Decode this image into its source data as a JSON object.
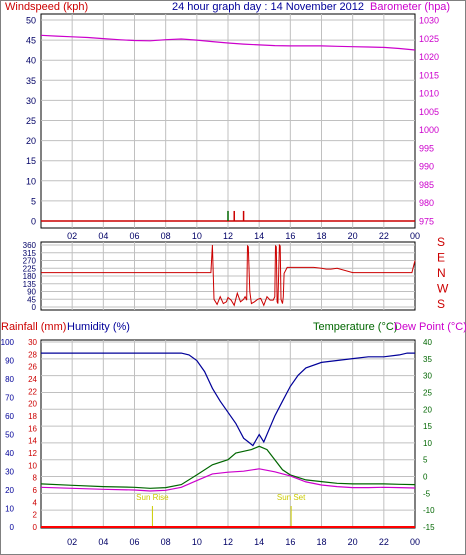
{
  "title": "24 hour graph day : 14 November 2012",
  "x_ticks": [
    "02",
    "04",
    "06",
    "08",
    "10",
    "12",
    "14",
    "16",
    "18",
    "20",
    "22",
    "00"
  ],
  "colors": {
    "wind_axis": "#cc0000",
    "baro": "#cc00cc",
    "humidity": "#000099",
    "temperature": "#006600",
    "dewpoint": "#cc00cc",
    "rainfall": "#ff0000",
    "sun": "#cccc00",
    "grid": "#c0c0c0",
    "tick_labels": "#000066"
  },
  "chart_data": [
    {
      "type": "line",
      "ylabel": "Windspeed (kph)",
      "y2label": "Barometer (hpa)",
      "ylim": [
        0,
        50
      ],
      "y2lim": [
        975,
        1030
      ],
      "yticks": [
        0,
        5,
        10,
        15,
        20,
        25,
        30,
        35,
        40,
        45,
        50
      ],
      "y2ticks": [
        975,
        980,
        985,
        990,
        995,
        1000,
        1005,
        1010,
        1015,
        1020,
        1025,
        1030
      ],
      "xlim": [
        0,
        24
      ],
      "series": [
        {
          "role": "barometer",
          "axis": "right",
          "x": [
            0,
            1,
            2,
            3,
            4,
            5,
            6,
            7,
            8,
            9,
            10,
            11,
            12,
            13,
            14,
            15,
            16,
            17,
            18,
            19,
            20,
            21,
            22,
            23,
            24
          ],
          "values": [
            1025.8,
            1025.6,
            1025.4,
            1025.2,
            1024.9,
            1024.6,
            1024.4,
            1024.3,
            1024.6,
            1024.8,
            1024.5,
            1024.1,
            1023.7,
            1023.4,
            1023.2,
            1023.0,
            1022.9,
            1022.9,
            1022.9,
            1022.8,
            1022.7,
            1022.6,
            1022.5,
            1022.2,
            1021.8
          ]
        },
        {
          "role": "windspeed",
          "axis": "left",
          "x": [
            11.9,
            12.0,
            12.1,
            12.3,
            12.4,
            12.9,
            13.0,
            13.1
          ],
          "values": [
            0,
            2.5,
            0,
            0,
            2.5,
            0,
            2.5,
            0
          ]
        }
      ]
    },
    {
      "type": "line",
      "ylim": [
        0,
        360
      ],
      "yticks": [
        0,
        45,
        90,
        135,
        180,
        225,
        270,
        315,
        360
      ],
      "y2ticks": [
        "S",
        "E",
        "N",
        "W",
        "S"
      ],
      "xlim": [
        0,
        24
      ],
      "series": [
        {
          "role": "wind_direction",
          "x": [
            0,
            10.8,
            10.9,
            11.0,
            11.1,
            11.3,
            11.5,
            11.7,
            11.9,
            12.0,
            12.2,
            12.4,
            12.6,
            12.8,
            13.0,
            13.1,
            13.2,
            13.25,
            13.3,
            13.4,
            13.5,
            13.7,
            13.9,
            14.1,
            14.3,
            14.5,
            14.7,
            14.9,
            15.0,
            15.05,
            15.1,
            15.15,
            15.2,
            15.3,
            15.35,
            15.4,
            15.5,
            15.55,
            15.6,
            15.8,
            16.0,
            17.5,
            18.0,
            18.3,
            18.6,
            19.0,
            20.0,
            22.0,
            23.5,
            23.8,
            24.0
          ],
          "values": [
            200,
            200,
            200,
            360,
            45,
            15,
            60,
            20,
            30,
            55,
            40,
            10,
            80,
            30,
            45,
            60,
            40,
            355,
            350,
            90,
            20,
            30,
            45,
            50,
            10,
            60,
            40,
            40,
            60,
            355,
            350,
            30,
            20,
            360,
            355,
            45,
            20,
            60,
            195,
            230,
            230,
            230,
            225,
            220,
            220,
            225,
            200,
            200,
            200,
            200,
            270
          ]
        }
      ]
    },
    {
      "type": "line",
      "ylabel": "Rainfall (mm)",
      "ylabel2": "Humidity (%)",
      "y2label": "Temperature (°C)",
      "y2label2": "Dew Point (°C)",
      "ylim": [
        0,
        100
      ],
      "rain_ylim": [
        0,
        30
      ],
      "temp_lim": [
        -15,
        40
      ],
      "humidity_ticks": [
        0,
        10,
        20,
        30,
        40,
        50,
        60,
        70,
        80,
        90,
        100
      ],
      "rain_ticks": [
        0,
        2,
        4,
        6,
        8,
        10,
        12,
        14,
        16,
        18,
        20,
        22,
        24,
        26,
        28,
        30
      ],
      "temp_ticks": [
        -15,
        -10,
        -5,
        0,
        5,
        10,
        15,
        20,
        25,
        30,
        35,
        40
      ],
      "xlim": [
        0,
        24
      ],
      "annotations": [
        {
          "text": "Sun Rise",
          "x": 7.15
        },
        {
          "text": "Sun Set",
          "x": 16.05
        }
      ],
      "series": [
        {
          "role": "humidity",
          "axis": "humidity",
          "x": [
            0,
            2,
            4,
            6,
            8,
            9,
            9.5,
            10,
            10.5,
            11,
            11.5,
            12,
            12.5,
            13,
            13.3,
            13.6,
            14,
            14.3,
            14.6,
            15,
            15.5,
            16,
            16.5,
            17,
            18,
            19,
            20,
            21,
            22,
            23,
            23.5,
            24
          ],
          "values": [
            94,
            94,
            94,
            94,
            94,
            94,
            93,
            90,
            84,
            75,
            68,
            62,
            56,
            48,
            46,
            44,
            50,
            46,
            52,
            60,
            68,
            76,
            82,
            86,
            89,
            90,
            91,
            92,
            92,
            93,
            94,
            94
          ]
        },
        {
          "role": "temperature",
          "axis": "temperature",
          "x": [
            0,
            2,
            4,
            6,
            7,
            8,
            9,
            10,
            11,
            12,
            12.5,
            13,
            13.5,
            14,
            14.5,
            15,
            15.5,
            16,
            17,
            18,
            19,
            20,
            21,
            22,
            23,
            24
          ],
          "values": [
            -2.2,
            -2.6,
            -3.0,
            -3.2,
            -3.5,
            -3.3,
            -2.4,
            0.5,
            3.5,
            5.0,
            7.0,
            7.5,
            8.0,
            9.0,
            8.0,
            5.0,
            2.0,
            0.5,
            -1.0,
            -1.5,
            -2.0,
            -2.2,
            -2.2,
            -2.2,
            -2.3,
            -2.4
          ]
        },
        {
          "role": "dewpoint",
          "axis": "temperature",
          "x": [
            0,
            2,
            4,
            6,
            7,
            8,
            9,
            10,
            11,
            12,
            13,
            14,
            15,
            16,
            17,
            18,
            19,
            20,
            21,
            22,
            23,
            24
          ],
          "values": [
            -3.2,
            -3.5,
            -3.8,
            -4.0,
            -4.3,
            -4.1,
            -3.2,
            -1.2,
            0.8,
            1.3,
            1.6,
            2.3,
            1.4,
            0.2,
            -1.6,
            -2.5,
            -3.0,
            -3.3,
            -3.3,
            -3.2,
            -3.3,
            -3.4
          ]
        },
        {
          "role": "rainfall",
          "axis": "rain",
          "x": [
            0,
            24
          ],
          "values": [
            0,
            0
          ]
        }
      ]
    }
  ]
}
